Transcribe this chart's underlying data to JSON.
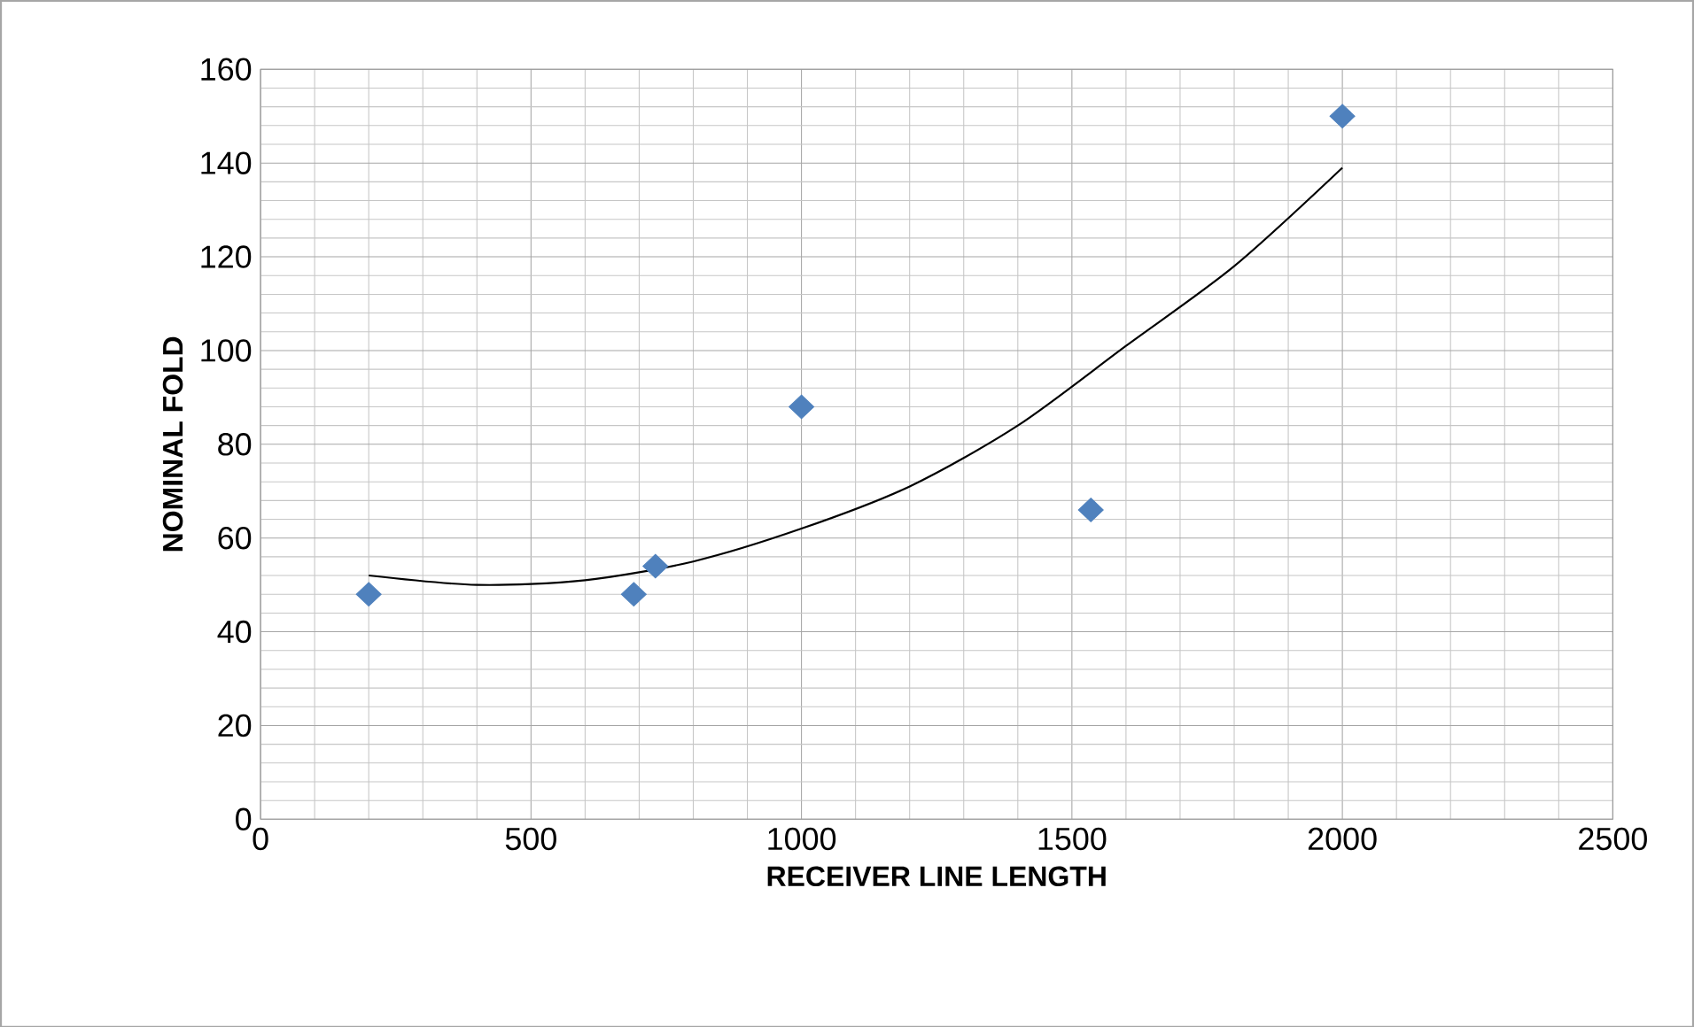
{
  "chart_data": {
    "type": "scatter",
    "xlabel": "RECEIVER LINE LENGTH",
    "ylabel": "NOMINAL FOLD",
    "xlim": [
      0,
      2500
    ],
    "xticks": [
      0,
      500,
      1000,
      1500,
      2000,
      2500
    ],
    "ylim": [
      0,
      160
    ],
    "yticks": [
      0,
      20,
      40,
      60,
      80,
      100,
      120,
      140,
      160
    ],
    "grid": true,
    "marker": "diamond",
    "series": [
      {
        "color": "#4f81bd",
        "x": [
          200,
          690,
          730,
          1000,
          1535,
          2000
        ],
        "values": [
          48,
          48,
          54,
          88,
          66,
          150
        ]
      },
      {
        "type": "line",
        "color": "#000000",
        "marker": "none",
        "x": [
          200,
          400,
          600,
          800,
          1000,
          1200,
          1400,
          1600,
          1800,
          2000
        ],
        "values": [
          52,
          50,
          51,
          55,
          62,
          71,
          84,
          101,
          118,
          139
        ]
      }
    ]
  }
}
